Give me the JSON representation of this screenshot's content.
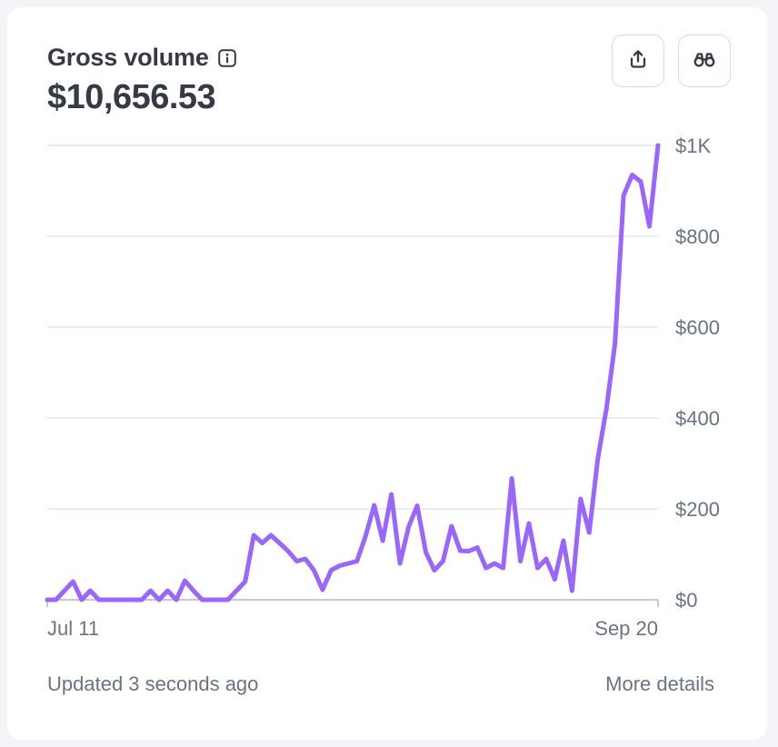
{
  "header": {
    "title": "Gross volume",
    "total": "$10,656.53",
    "info_icon": "info-icon",
    "export_icon": "share-export-icon",
    "explore_icon": "binoculars-icon"
  },
  "footer": {
    "updated": "Updated 3 seconds ago",
    "more_details": "More details"
  },
  "colors": {
    "line": "#9966ff",
    "grid": "#e3e8ee",
    "text": "#353a44",
    "muted": "#687385"
  },
  "chart_data": {
    "type": "line",
    "x_start_label": "Jul 11",
    "x_end_label": "Sep 20",
    "ylim": [
      0,
      1000
    ],
    "yticks": [
      0,
      200,
      400,
      600,
      800,
      1000
    ],
    "ytick_labels": [
      "$0",
      "$200",
      "$400",
      "$600",
      "$800",
      "$1K"
    ],
    "grid": true,
    "series": [
      {
        "values": [
          0,
          0,
          20,
          40,
          0,
          20,
          0,
          0,
          0,
          0,
          0,
          0,
          20,
          0,
          20,
          0,
          42,
          20,
          0,
          0,
          0,
          0,
          20,
          40,
          142,
          125,
          142,
          125,
          107,
          85,
          90,
          65,
          22,
          65,
          75,
          80,
          85,
          140,
          208,
          130,
          232,
          80,
          160,
          207,
          105,
          65,
          85,
          162,
          108,
          107,
          115,
          70,
          80,
          70,
          267,
          85,
          168,
          70,
          90,
          45,
          130,
          20,
          222,
          148,
          310,
          420,
          565,
          890,
          935,
          920,
          822,
          1000
        ]
      }
    ]
  }
}
